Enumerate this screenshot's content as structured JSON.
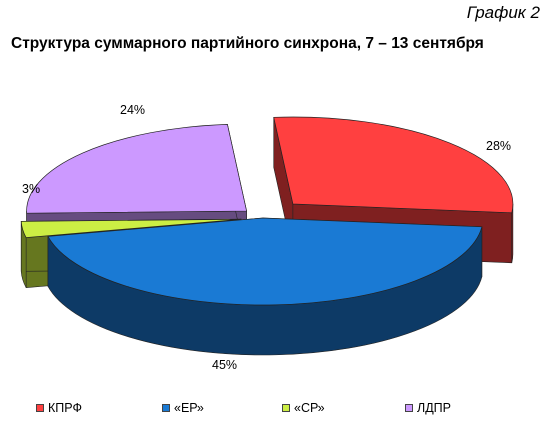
{
  "corner_label": "График 2",
  "chart_data": {
    "type": "pie",
    "title": "Структура суммарного партийного синхрона, 7 – 13 сентября",
    "legend_position": "bottom",
    "slices": [
      {
        "name": "КПРФ",
        "value": 28,
        "label": "28%",
        "color": "#ff4040",
        "side_color": "#7f2020"
      },
      {
        "name": "«ЕР»",
        "value": 45,
        "label": "45%",
        "color": "#1a7ad4",
        "side_color": "#0d3a66"
      },
      {
        "name": "«СР»",
        "value": 3,
        "label": "3%",
        "color": "#ccee44",
        "side_color": "#66771f"
      },
      {
        "name": "ЛДПР",
        "value": 24,
        "label": "24%",
        "color": "#cc99ff",
        "side_color": "#664c80"
      }
    ]
  }
}
